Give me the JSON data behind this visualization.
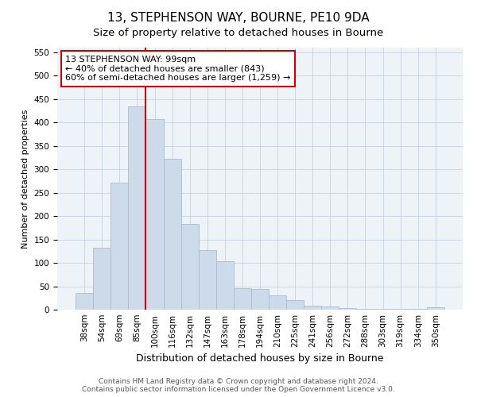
{
  "title": "13, STEPHENSON WAY, BOURNE, PE10 9DA",
  "subtitle": "Size of property relative to detached houses in Bourne",
  "xlabel": "Distribution of detached houses by size in Bourne",
  "ylabel": "Number of detached properties",
  "categories": [
    "38sqm",
    "54sqm",
    "69sqm",
    "85sqm",
    "100sqm",
    "116sqm",
    "132sqm",
    "147sqm",
    "163sqm",
    "178sqm",
    "194sqm",
    "210sqm",
    "225sqm",
    "241sqm",
    "256sqm",
    "272sqm",
    "288sqm",
    "303sqm",
    "319sqm",
    "334sqm",
    "350sqm"
  ],
  "values": [
    35,
    133,
    271,
    434,
    407,
    323,
    184,
    128,
    103,
    45,
    44,
    30,
    20,
    8,
    7,
    3,
    2,
    2,
    1,
    1,
    5
  ],
  "bar_color": "#ccdaea",
  "bar_edge_color": "#aabcce",
  "vline_color": "#cc0000",
  "vline_pos": 4,
  "annotation_text": "13 STEPHENSON WAY: 99sqm\n← 40% of detached houses are smaller (843)\n60% of semi-detached houses are larger (1,259) →",
  "annotation_box_facecolor": "#ffffff",
  "annotation_box_edgecolor": "#cc0000",
  "ylim": [
    0,
    560
  ],
  "yticks": [
    0,
    50,
    100,
    150,
    200,
    250,
    300,
    350,
    400,
    450,
    500,
    550
  ],
  "background_color": "#eef3f8",
  "grid_color": "#c0ccd8",
  "footer_line1": "Contains HM Land Registry data © Crown copyright and database right 2024.",
  "footer_line2": "Contains public sector information licensed under the Open Government Licence v3.0.",
  "title_fontsize": 11,
  "subtitle_fontsize": 9.5,
  "xlabel_fontsize": 9,
  "ylabel_fontsize": 8,
  "tick_fontsize": 7.5,
  "annotation_fontsize": 8,
  "footer_fontsize": 6.5
}
